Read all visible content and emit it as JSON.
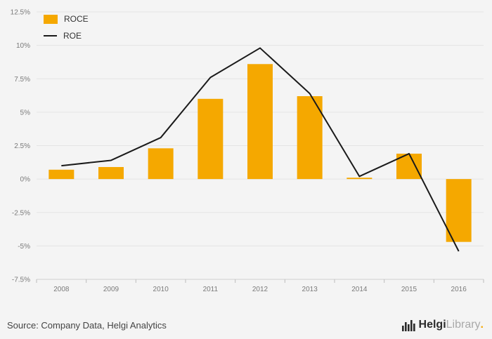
{
  "chart_data": {
    "type": "bar+line",
    "categories": [
      "2008",
      "2009",
      "2010",
      "2011",
      "2012",
      "2013",
      "2014",
      "2015",
      "2016"
    ],
    "series": [
      {
        "name": "ROCE",
        "type": "bar",
        "color": "#f5a800",
        "values": [
          0.7,
          0.9,
          2.3,
          6.0,
          8.6,
          6.2,
          0.1,
          1.9,
          -4.7
        ]
      },
      {
        "name": "ROE",
        "type": "line",
        "color": "#1a1a1a",
        "values": [
          1.0,
          1.4,
          3.1,
          7.6,
          9.8,
          6.4,
          0.2,
          1.9,
          -5.4
        ]
      }
    ],
    "ylim": [
      -7.5,
      12.5
    ],
    "ytick_step": 2.5,
    "ytick_labels": [
      "-7.5%",
      "-5%",
      "-2.5%",
      "0%",
      "2.5%",
      "5%",
      "7.5%",
      "10%",
      "12.5%"
    ],
    "grid": "horizontal",
    "legend_position": "top-left",
    "title": ""
  },
  "footer": {
    "source": "Source: Company Data, Helgi Analytics",
    "brand_bold": "Helgi",
    "brand_light": "Library",
    "brand_dot": "."
  }
}
